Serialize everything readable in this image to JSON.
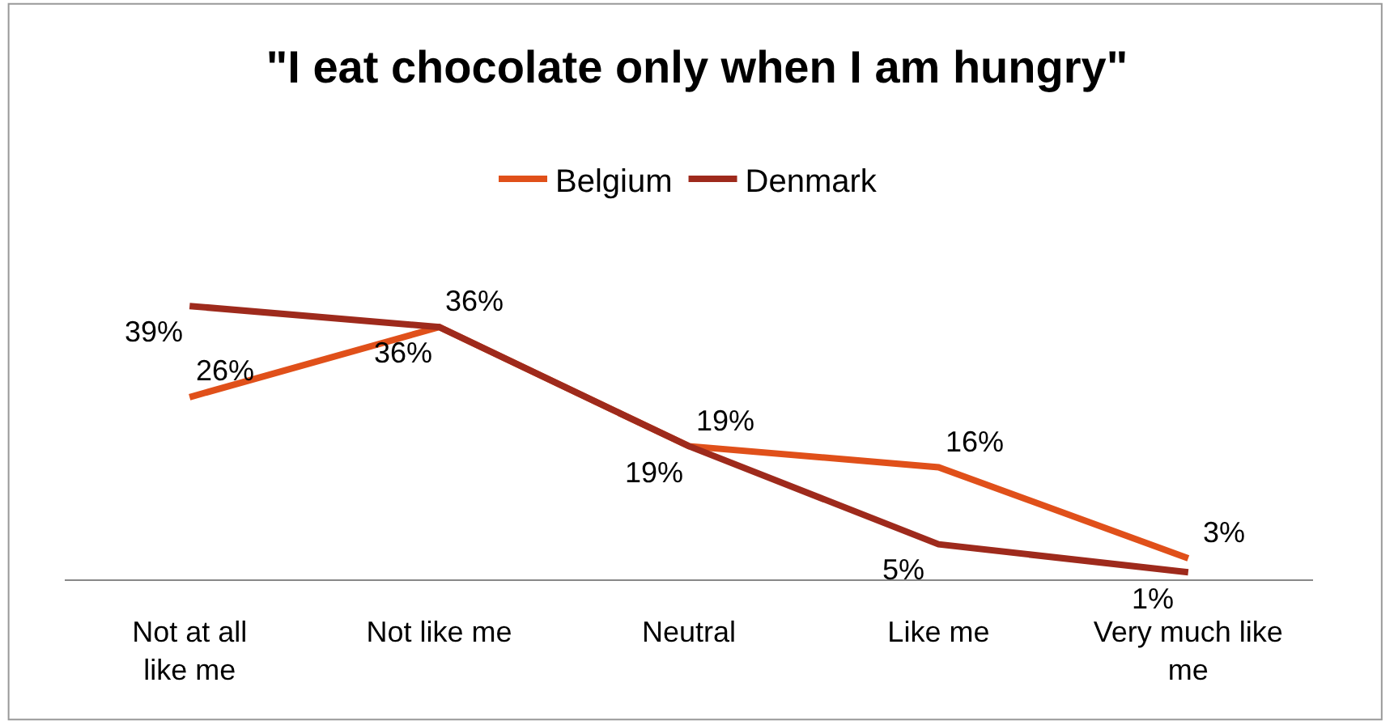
{
  "chart_data": {
    "type": "line",
    "title": "\"I eat chocolate only when I am hungry\"",
    "categories": [
      "Not at all like me",
      "Not like me",
      "Neutral",
      "Like me",
      "Very much like me"
    ],
    "series": [
      {
        "name": "Belgium",
        "color": "#e0501a",
        "values": [
          26,
          36,
          19,
          16,
          3
        ],
        "value_labels": [
          "26%",
          "36%",
          "19%",
          "16%",
          "3%"
        ]
      },
      {
        "name": "Denmark",
        "color": "#9e2a1c",
        "values": [
          39,
          36,
          19,
          5,
          1
        ],
        "value_labels": [
          "39%",
          "36%",
          "19%",
          "5%",
          "1%"
        ]
      }
    ],
    "legend": "top",
    "marker": "none",
    "line_style": "solid"
  }
}
